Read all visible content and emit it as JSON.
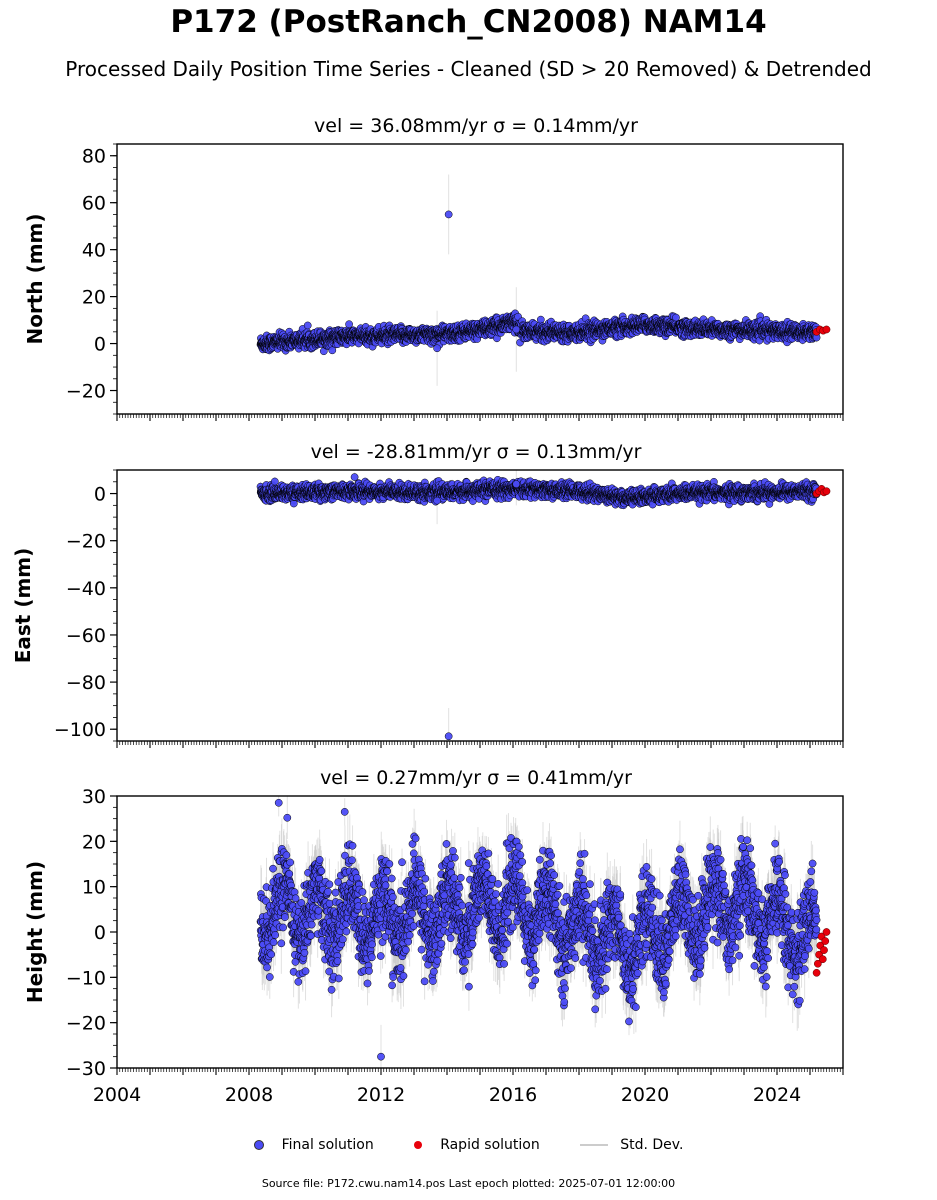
{
  "title": "P172 (PostRanch_CN2008) NAM14",
  "subtitle": "Processed Daily Position Time Series - Cleaned (SD > 20 Removed) & Detrended",
  "legend": {
    "final": "Final solution",
    "rapid": "Rapid solution",
    "std": "Std. Dev."
  },
  "footer": "Source file: P172.cwu.nam14.pos  Last epoch plotted: 2025-07-01 12:00:00",
  "colors": {
    "final": "#4b4bf5",
    "rapid": "#e8000b",
    "std": "#c8c8c8",
    "edge": "#000000"
  },
  "chart_data": [
    {
      "type": "scatter",
      "component": "north",
      "title": "vel = 36.08mm/yr   σ = 0.14mm/yr",
      "ylabel": "North (mm)",
      "xlim": [
        2004.0,
        2026.0
      ],
      "ylim": [
        -30,
        85
      ],
      "yticks": [
        "80",
        "60",
        "40",
        "20",
        "0",
        "−20"
      ],
      "ytick_values": [
        80,
        60,
        40,
        20,
        0,
        -20
      ],
      "start": 2008.35,
      "end": 2025.2,
      "trend_anchors": [
        [
          2008.35,
          0
        ],
        [
          2011,
          3
        ],
        [
          2014,
          4
        ],
        [
          2015.5,
          7
        ],
        [
          2016,
          10
        ],
        [
          2016.3,
          5
        ],
        [
          2018,
          5
        ],
        [
          2020,
          8
        ],
        [
          2022,
          6
        ],
        [
          2025.2,
          5
        ]
      ],
      "noise": 1.6,
      "sd_typical": 1.5,
      "outliers": [
        {
          "x": 2014.05,
          "y": 55,
          "sd": 17
        },
        {
          "x": 2013.7,
          "y": -2,
          "sd": 16
        },
        {
          "x": 2016.1,
          "y": 6,
          "sd": 18
        }
      ],
      "rapid": {
        "x_start": 2025.2,
        "x_end": 2025.5,
        "values": [
          5,
          6,
          5.5,
          6
        ]
      }
    },
    {
      "type": "scatter",
      "component": "east",
      "title": "vel = -28.81mm/yr   σ = 0.13mm/yr",
      "ylabel": "East (mm)",
      "xlim": [
        2004.0,
        2026.0
      ],
      "ylim": [
        -105,
        10
      ],
      "yticks": [
        "0",
        "−20",
        "−40",
        "−60",
        "−80",
        "−100"
      ],
      "ytick_values": [
        0,
        -20,
        -40,
        -60,
        -80,
        -100
      ],
      "start": 2008.35,
      "end": 2025.2,
      "trend_anchors": [
        [
          2008.35,
          0
        ],
        [
          2011,
          1
        ],
        [
          2014,
          0.5
        ],
        [
          2016,
          2
        ],
        [
          2018,
          1
        ],
        [
          2019.5,
          -2
        ],
        [
          2021,
          0
        ],
        [
          2025.2,
          1
        ]
      ],
      "noise": 1.5,
      "sd_typical": 1.5,
      "outliers": [
        {
          "x": 2014.05,
          "y": -103,
          "sd": 12
        },
        {
          "x": 2013.7,
          "y": -3,
          "sd": 10
        },
        {
          "x": 2016.1,
          "y": 4,
          "sd": 9
        },
        {
          "x": 2011.2,
          "y": 7,
          "sd": 2
        }
      ],
      "rapid": {
        "x_start": 2025.2,
        "x_end": 2025.5,
        "values": [
          0,
          1,
          2,
          0.5,
          1
        ]
      }
    },
    {
      "type": "scatter",
      "component": "height",
      "title": "vel = 0.27mm/yr   σ = 0.41mm/yr",
      "ylabel": "Height (mm)",
      "xlim": [
        2004.0,
        2026.0
      ],
      "ylim": [
        -30,
        30
      ],
      "yticks": [
        "30",
        "20",
        "10",
        "0",
        "−10",
        "−20",
        "−30"
      ],
      "ytick_values": [
        30,
        20,
        10,
        0,
        -10,
        -20,
        -30
      ],
      "start": 2008.35,
      "end": 2025.2,
      "trend_anchors": [
        [
          2008.35,
          5
        ],
        [
          2012,
          3
        ],
        [
          2016,
          6
        ],
        [
          2019.5,
          -3
        ],
        [
          2022.5,
          7
        ],
        [
          2025.2,
          -2
        ]
      ],
      "seasonal_amplitude": 6,
      "noise": 4.5,
      "sd_typical": 5,
      "outliers": [
        {
          "x": 2012.0,
          "y": -27.5,
          "sd": 7
        },
        {
          "x": 2008.9,
          "y": 28.5,
          "sd": 3
        },
        {
          "x": 2010.9,
          "y": 26.5,
          "sd": 3
        }
      ],
      "rapid": {
        "x_start": 2025.2,
        "x_end": 2025.5,
        "values": [
          -9,
          -7,
          -5,
          -3,
          -1,
          -6,
          -4,
          -2,
          0
        ]
      },
      "xticks": [
        "2004",
        "2008",
        "2012",
        "2016",
        "2020",
        "2024"
      ],
      "xtick_values": [
        2004,
        2008,
        2012,
        2016,
        2020,
        2024
      ]
    }
  ]
}
